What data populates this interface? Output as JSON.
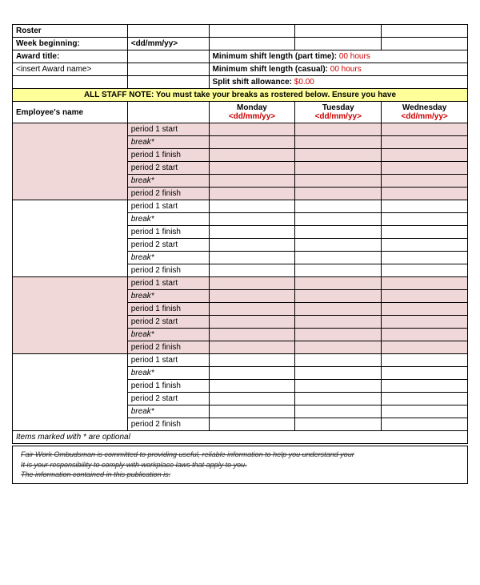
{
  "header": {
    "roster": "Roster",
    "week_beginning_label": "Week beginning:",
    "week_beginning_value": "<dd/mm/yy>",
    "award_title_label": "Award title:",
    "award_name_placeholder": "<insert Award name>",
    "min_shift_pt_label": "Minimum shift length (part time): ",
    "min_shift_pt_value": "00 hours",
    "min_shift_casual_label": "Minimum shift length (casual): ",
    "min_shift_casual_value": "00 hours",
    "split_shift_label": "Split shift allowance: ",
    "split_shift_value": "$0.00"
  },
  "note": "ALL STAFF NOTE: You must take your breaks as rostered below. Ensure you have",
  "columns": {
    "employee_name": "Employee's name",
    "days": [
      {
        "name": "Monday",
        "date": "<dd/mm/yy>"
      },
      {
        "name": "Tuesday",
        "date": "<dd/mm/yy>"
      },
      {
        "name": "Wednesday",
        "date": "<dd/mm/yy>"
      }
    ]
  },
  "periods": {
    "p1start": "period 1 start",
    "break": "break*",
    "p1finish": "period 1 finish",
    "p2start": "period 2 start",
    "p2finish": "period 2 finish"
  },
  "footer_note": "Items marked with * are optional",
  "disclaimer": {
    "line1": "Fair Work Ombudsman is committed to providing useful, reliable information to help you understand your",
    "line2": "It is your responsibility to comply with workplace laws that apply to you.",
    "line3": "The information contained in this publication is:"
  }
}
